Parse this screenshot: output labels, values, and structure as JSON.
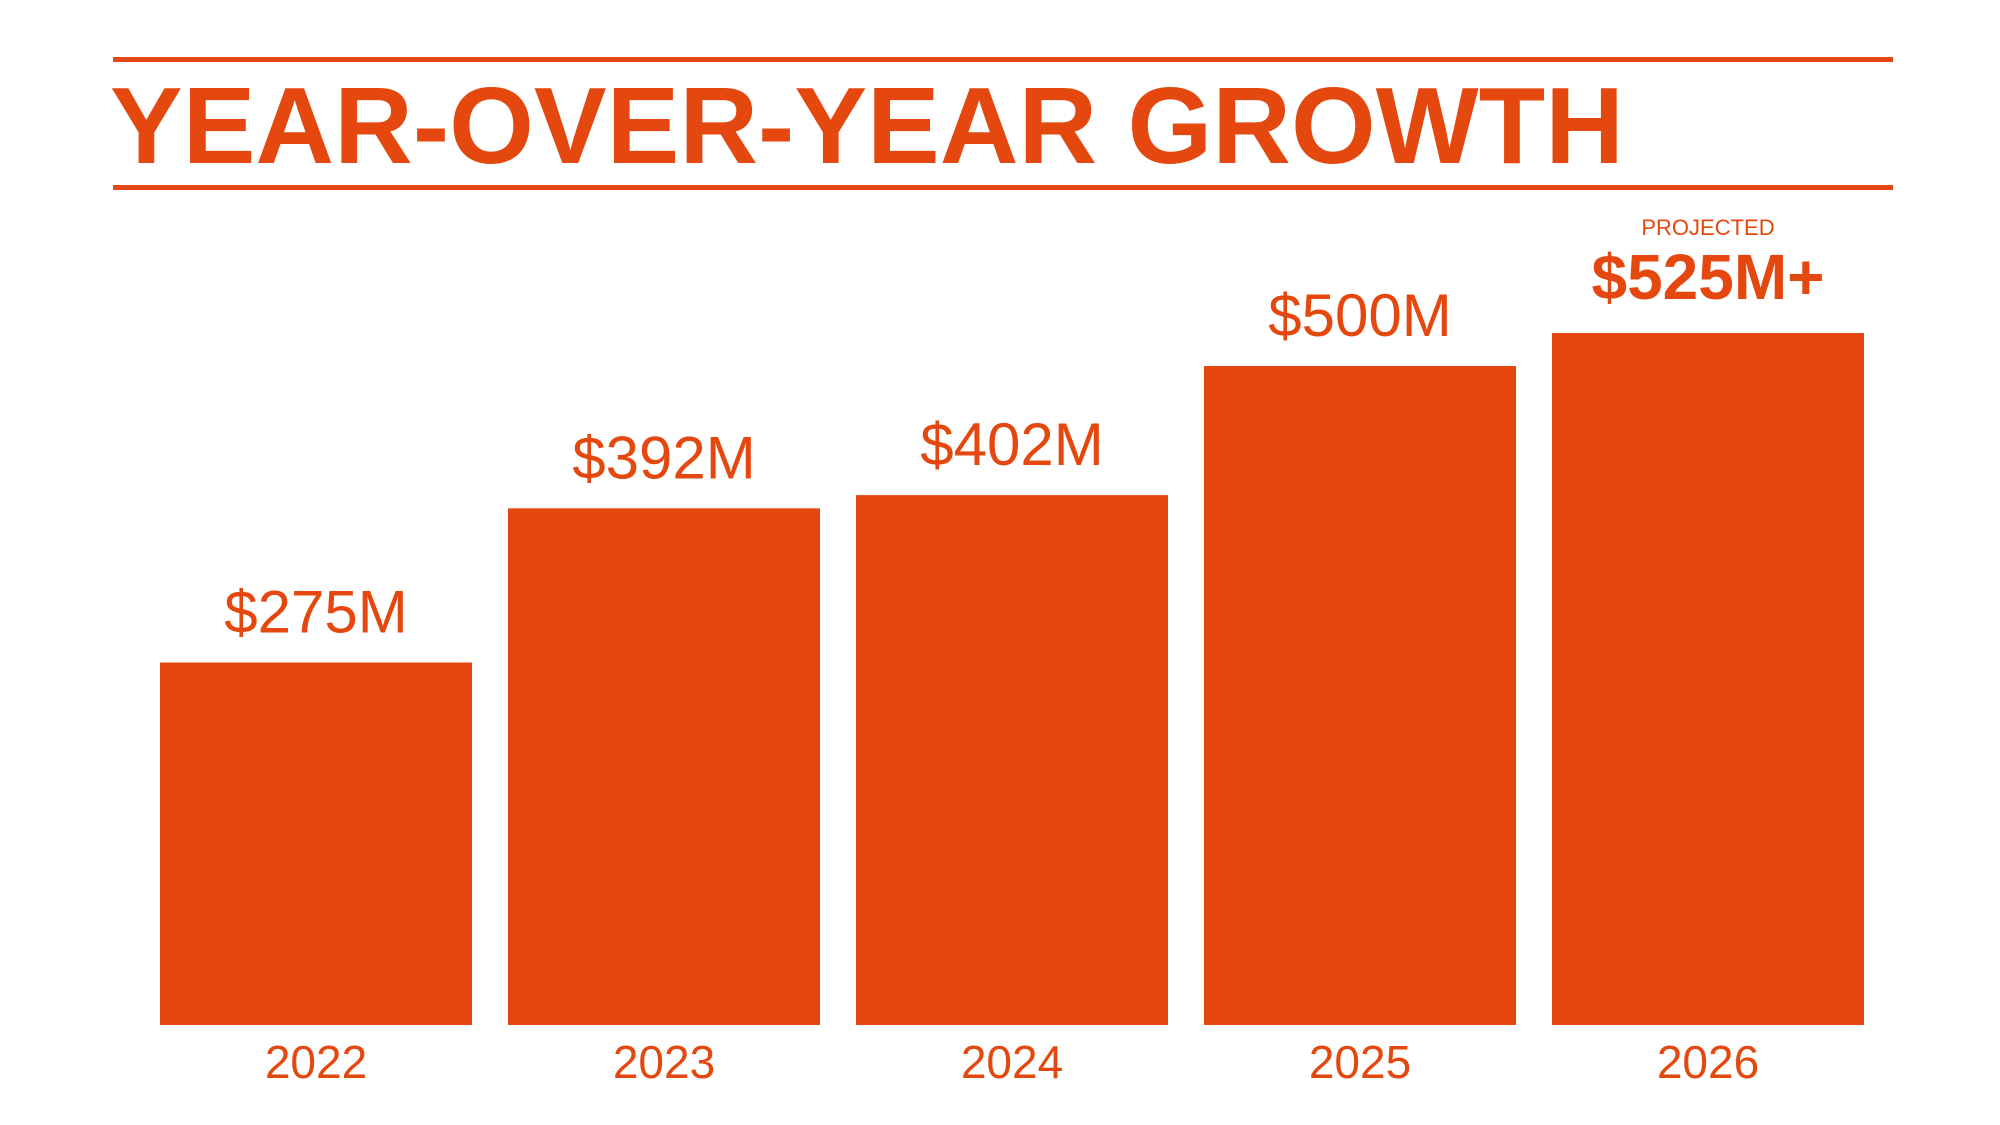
{
  "colors": {
    "accent": "#E5480F",
    "background": "#FFFFFF"
  },
  "header": {
    "title": "YEAR-OVER-YEAR GROWTH"
  },
  "chart_data": {
    "type": "bar",
    "title": "YEAR-OVER-YEAR GROWTH",
    "categories": [
      "2022",
      "2023",
      "2024",
      "2025",
      "2026"
    ],
    "values": [
      275,
      392,
      402,
      500,
      525
    ],
    "value_labels": [
      "$275M",
      "$392M",
      "$402M",
      "$500M",
      "$525M+"
    ],
    "annotations": [
      {
        "category": "2026",
        "text": "PROJECTED"
      }
    ],
    "highlight": {
      "category": "2026",
      "label_weight": "bold"
    },
    "xlabel": "",
    "ylabel": "",
    "ylim": [
      0,
      525
    ],
    "grid": false,
    "legend": "none"
  }
}
